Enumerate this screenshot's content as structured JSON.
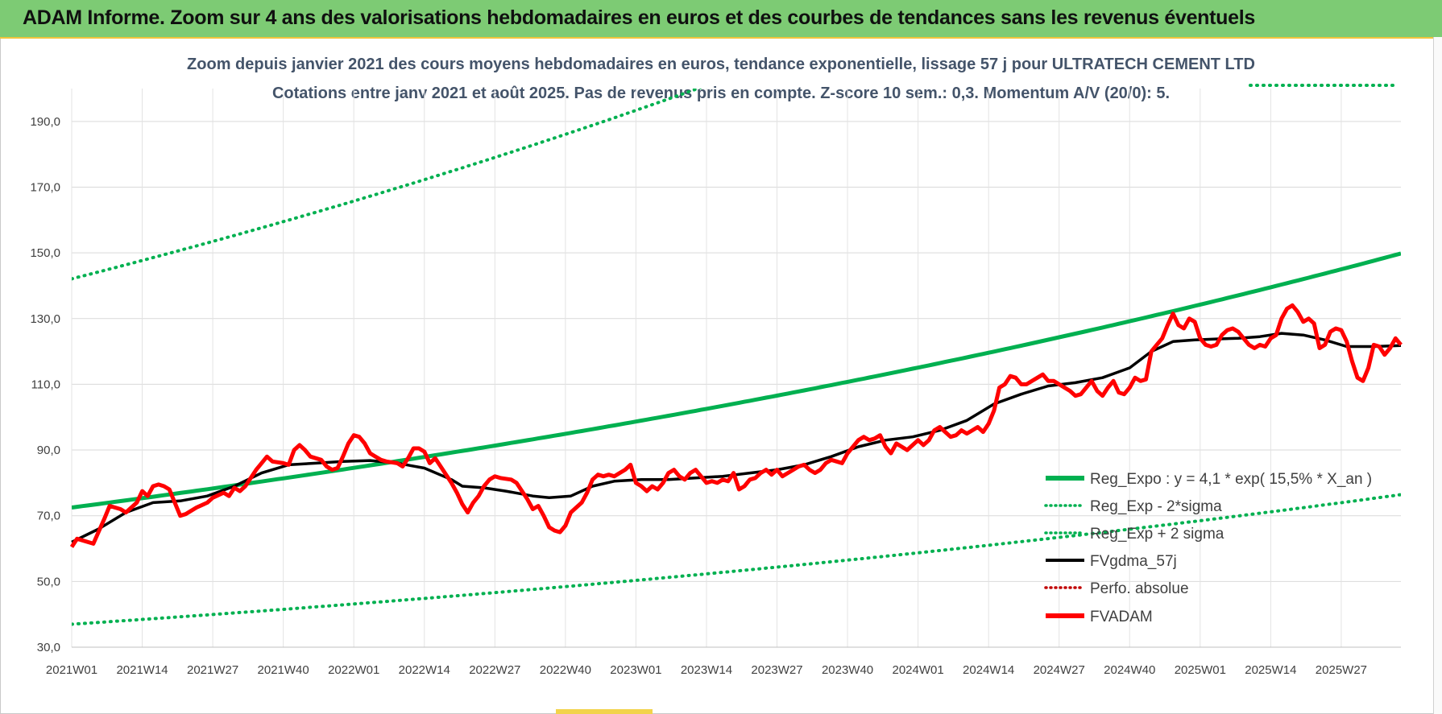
{
  "header": {
    "title": "ADAM Informe. Zoom sur 4 ans des valorisations hebdomadaires en euros et des courbes de tendances sans les revenus éventuels"
  },
  "colors": {
    "banner": "#7dcb74",
    "trend": "#00b050",
    "smooth": "#000000",
    "price": "#ff0000",
    "perfo": "#c00000",
    "subtitle": "#44546a"
  },
  "chart_data": {
    "type": "line",
    "title_line1": "Zoom depuis janvier 2021 des cours moyens hebdomadaires en euros, tendance exponentielle, lissage 57 j pour ULTRATECH CEMENT LTD",
    "title_line2": "Cotations entre janv 2021 et août 2025. Pas de revenus pris en compte. Z-score 10 sem.: 0,3. Momentum A/V (20/0): 5.",
    "ylim": [
      30,
      200
    ],
    "y_ticks": [
      "30,0",
      "50,0",
      "70,0",
      "90,0",
      "110,0",
      "130,0",
      "150,0",
      "170,0",
      "190,0"
    ],
    "y_tick_values": [
      30,
      50,
      70,
      90,
      110,
      130,
      150,
      170,
      190
    ],
    "x_tick_labels": [
      "2021W01",
      "2021W14",
      "2021W27",
      "2021W40",
      "2022W01",
      "2022W14",
      "2022W27",
      "2022W40",
      "2023W01",
      "2023W14",
      "2023W27",
      "2023W40",
      "2024W01",
      "2024W14",
      "2024W27",
      "2024W40",
      "2025W01",
      "2025W14",
      "2025W27"
    ],
    "x_range_weeks": [
      0,
      245
    ],
    "grid": true,
    "legend_position": "bottom-right",
    "legend": [
      {
        "label": "Reg_Expo : y = 4,1 * exp( 15,5% *  X_an )",
        "style": "solid-thick",
        "color": "#00b050"
      },
      {
        "label": "Reg_Exp - 2*sigma",
        "style": "dotted",
        "color": "#00b050"
      },
      {
        "label": "Reg_Exp + 2 sigma",
        "style": "dotted",
        "color": "#00b050"
      },
      {
        "label": "FVgdma_57j",
        "style": "solid",
        "color": "#000000"
      },
      {
        "label": "Perfo. absolue",
        "style": "dotted",
        "color": "#c00000"
      },
      {
        "label": "FVADAM",
        "style": "solid-thick",
        "color": "#ff0000"
      }
    ],
    "trend": {
      "start": 72.5,
      "end": 149.8
    },
    "band_factor": 1.96,
    "fvadam_points": [
      [
        0,
        60.5
      ],
      [
        1,
        63
      ],
      [
        3,
        62
      ],
      [
        4,
        61.5
      ],
      [
        6,
        69
      ],
      [
        7,
        73
      ],
      [
        9,
        72
      ],
      [
        10,
        71
      ],
      [
        12,
        74
      ],
      [
        13,
        77.5
      ],
      [
        14,
        76
      ],
      [
        15,
        79
      ],
      [
        16,
        79.5
      ],
      [
        17,
        79
      ],
      [
        18,
        78
      ],
      [
        20,
        70
      ],
      [
        21,
        70.5
      ],
      [
        23,
        72.5
      ],
      [
        25,
        74
      ],
      [
        26,
        75.5
      ],
      [
        28,
        77
      ],
      [
        29,
        76
      ],
      [
        30,
        78.5
      ],
      [
        31,
        77.5
      ],
      [
        32,
        79
      ],
      [
        34,
        84
      ],
      [
        35,
        86
      ],
      [
        36,
        88
      ],
      [
        37,
        86.5
      ],
      [
        39,
        86
      ],
      [
        40,
        85.5
      ],
      [
        41,
        90
      ],
      [
        42,
        91.5
      ],
      [
        43,
        90
      ],
      [
        44,
        88
      ],
      [
        46,
        87
      ],
      [
        47,
        85
      ],
      [
        48,
        84
      ],
      [
        49,
        84.5
      ],
      [
        50,
        88
      ],
      [
        51,
        92
      ],
      [
        52,
        94.5
      ],
      [
        53,
        94
      ],
      [
        54,
        92
      ],
      [
        55,
        89
      ],
      [
        56,
        88
      ],
      [
        57,
        87
      ],
      [
        58,
        86.5
      ],
      [
        60,
        86
      ],
      [
        61,
        85
      ],
      [
        62,
        87.5
      ],
      [
        63,
        90.5
      ],
      [
        64,
        90.5
      ],
      [
        65,
        89.5
      ],
      [
        66,
        86
      ],
      [
        67,
        87.5
      ],
      [
        68,
        85
      ],
      [
        70,
        80
      ],
      [
        71,
        77
      ],
      [
        72,
        73.5
      ],
      [
        73,
        71
      ],
      [
        74,
        74
      ],
      [
        75,
        76
      ],
      [
        76,
        79
      ],
      [
        77,
        81
      ],
      [
        78,
        82
      ],
      [
        79,
        81.5
      ],
      [
        81,
        81
      ],
      [
        82,
        80
      ],
      [
        83,
        77.5
      ],
      [
        84,
        75
      ],
      [
        85,
        72
      ],
      [
        86,
        73
      ],
      [
        87,
        70
      ],
      [
        88,
        66.5
      ],
      [
        89,
        65.5
      ],
      [
        90,
        65
      ],
      [
        91,
        67
      ],
      [
        92,
        71
      ],
      [
        93,
        72.5
      ],
      [
        94,
        74
      ],
      [
        95,
        77
      ],
      [
        96,
        81
      ],
      [
        97,
        82.5
      ],
      [
        98,
        82
      ],
      [
        99,
        82.5
      ],
      [
        100,
        82
      ],
      [
        101,
        83
      ],
      [
        102,
        84
      ],
      [
        103,
        85.5
      ],
      [
        104,
        80
      ],
      [
        105,
        79
      ],
      [
        106,
        77.5
      ],
      [
        107,
        79
      ],
      [
        108,
        78
      ],
      [
        109,
        80
      ],
      [
        110,
        83
      ],
      [
        111,
        84
      ],
      [
        112,
        82
      ],
      [
        113,
        81
      ],
      [
        114,
        83
      ],
      [
        115,
        84
      ],
      [
        116,
        82
      ],
      [
        117,
        80
      ],
      [
        118,
        80.5
      ],
      [
        119,
        80
      ],
      [
        120,
        81
      ],
      [
        121,
        80.5
      ],
      [
        122,
        83
      ],
      [
        123,
        78
      ],
      [
        124,
        79
      ],
      [
        125,
        81
      ],
      [
        126,
        81.5
      ],
      [
        127,
        83
      ],
      [
        128,
        84
      ],
      [
        129,
        82.5
      ],
      [
        130,
        84
      ],
      [
        131,
        82
      ],
      [
        132,
        83
      ],
      [
        133,
        84
      ],
      [
        134,
        85
      ],
      [
        135,
        85.5
      ],
      [
        136,
        84
      ],
      [
        137,
        83
      ],
      [
        138,
        84
      ],
      [
        139,
        86
      ],
      [
        140,
        87
      ],
      [
        141,
        86.5
      ],
      [
        142,
        86
      ],
      [
        143,
        89
      ],
      [
        144,
        91
      ],
      [
        145,
        93
      ],
      [
        146,
        94
      ],
      [
        147,
        93
      ],
      [
        148,
        93.5
      ],
      [
        149,
        94.5
      ],
      [
        150,
        91
      ],
      [
        151,
        89
      ],
      [
        152,
        92
      ],
      [
        153,
        91
      ],
      [
        154,
        90
      ],
      [
        155,
        91.5
      ],
      [
        156,
        93
      ],
      [
        157,
        91.5
      ],
      [
        158,
        93
      ],
      [
        159,
        96
      ],
      [
        160,
        97
      ],
      [
        161,
        95.5
      ],
      [
        162,
        94
      ],
      [
        163,
        94.5
      ],
      [
        164,
        96
      ],
      [
        165,
        95
      ],
      [
        166,
        96
      ],
      [
        167,
        97
      ],
      [
        168,
        95.5
      ],
      [
        169,
        98
      ],
      [
        170,
        102
      ],
      [
        171,
        109
      ],
      [
        172,
        110
      ],
      [
        173,
        112.5
      ],
      [
        174,
        112
      ],
      [
        175,
        110
      ],
      [
        176,
        110
      ],
      [
        177,
        111
      ],
      [
        178,
        112
      ],
      [
        179,
        113
      ],
      [
        180,
        111
      ],
      [
        181,
        111
      ],
      [
        182,
        110
      ],
      [
        183,
        109
      ],
      [
        184,
        108
      ],
      [
        185,
        106.5
      ],
      [
        186,
        107
      ],
      [
        187,
        109
      ],
      [
        188,
        111
      ],
      [
        189,
        108
      ],
      [
        190,
        106.5
      ],
      [
        191,
        109
      ],
      [
        192,
        111
      ],
      [
        193,
        107.5
      ],
      [
        194,
        107
      ],
      [
        195,
        109
      ],
      [
        196,
        112
      ],
      [
        197,
        111
      ],
      [
        198,
        111.5
      ],
      [
        199,
        120
      ],
      [
        200,
        122
      ],
      [
        201,
        124
      ],
      [
        202,
        128
      ],
      [
        203,
        131.5
      ],
      [
        204,
        128
      ],
      [
        205,
        127
      ],
      [
        206,
        130
      ],
      [
        207,
        129
      ],
      [
        208,
        124
      ],
      [
        209,
        122
      ],
      [
        210,
        121.5
      ],
      [
        211,
        122
      ],
      [
        212,
        125
      ],
      [
        213,
        126.5
      ],
      [
        214,
        127
      ],
      [
        215,
        126
      ],
      [
        216,
        124
      ],
      [
        217,
        122
      ],
      [
        218,
        121
      ],
      [
        219,
        122
      ],
      [
        220,
        121.5
      ],
      [
        221,
        124
      ],
      [
        222,
        125
      ],
      [
        223,
        130
      ],
      [
        224,
        133
      ],
      [
        225,
        134
      ],
      [
        226,
        132
      ],
      [
        227,
        129
      ],
      [
        228,
        130
      ],
      [
        229,
        128.5
      ],
      [
        230,
        121
      ],
      [
        231,
        122
      ],
      [
        232,
        126
      ],
      [
        233,
        127
      ],
      [
        234,
        126.5
      ],
      [
        235,
        123
      ],
      [
        236,
        117
      ],
      [
        237,
        112
      ],
      [
        238,
        111
      ],
      [
        239,
        115
      ],
      [
        240,
        122
      ],
      [
        241,
        121.5
      ],
      [
        242,
        119
      ],
      [
        243,
        121
      ],
      [
        244,
        124
      ],
      [
        245,
        122
      ]
    ],
    "fvgdma_points": [
      [
        0,
        62
      ],
      [
        5,
        66
      ],
      [
        10,
        71
      ],
      [
        15,
        74
      ],
      [
        20,
        74.5
      ],
      [
        25,
        76
      ],
      [
        30,
        79
      ],
      [
        35,
        83
      ],
      [
        40,
        85.5
      ],
      [
        45,
        86
      ],
      [
        50,
        86.5
      ],
      [
        55,
        86.8
      ],
      [
        60,
        86
      ],
      [
        65,
        84.5
      ],
      [
        70,
        81
      ],
      [
        72,
        79
      ],
      [
        76,
        78.5
      ],
      [
        80,
        77.5
      ],
      [
        85,
        76
      ],
      [
        88,
        75.5
      ],
      [
        92,
        76
      ],
      [
        96,
        79
      ],
      [
        100,
        80.5
      ],
      [
        105,
        81
      ],
      [
        110,
        81
      ],
      [
        115,
        81.5
      ],
      [
        120,
        82
      ],
      [
        125,
        83
      ],
      [
        130,
        84
      ],
      [
        135,
        85.5
      ],
      [
        140,
        88
      ],
      [
        145,
        91
      ],
      [
        150,
        93
      ],
      [
        155,
        94
      ],
      [
        160,
        96
      ],
      [
        165,
        99
      ],
      [
        170,
        104
      ],
      [
        175,
        107
      ],
      [
        180,
        109.5
      ],
      [
        185,
        110.5
      ],
      [
        190,
        112
      ],
      [
        195,
        115
      ],
      [
        199,
        120
      ],
      [
        203,
        123
      ],
      [
        207,
        123.5
      ],
      [
        211,
        123.8
      ],
      [
        215,
        124
      ],
      [
        219,
        124.5
      ],
      [
        223,
        125.5
      ],
      [
        227,
        125
      ],
      [
        231,
        123.5
      ],
      [
        235,
        121.5
      ],
      [
        240,
        121.5
      ],
      [
        245,
        121.8
      ]
    ]
  }
}
